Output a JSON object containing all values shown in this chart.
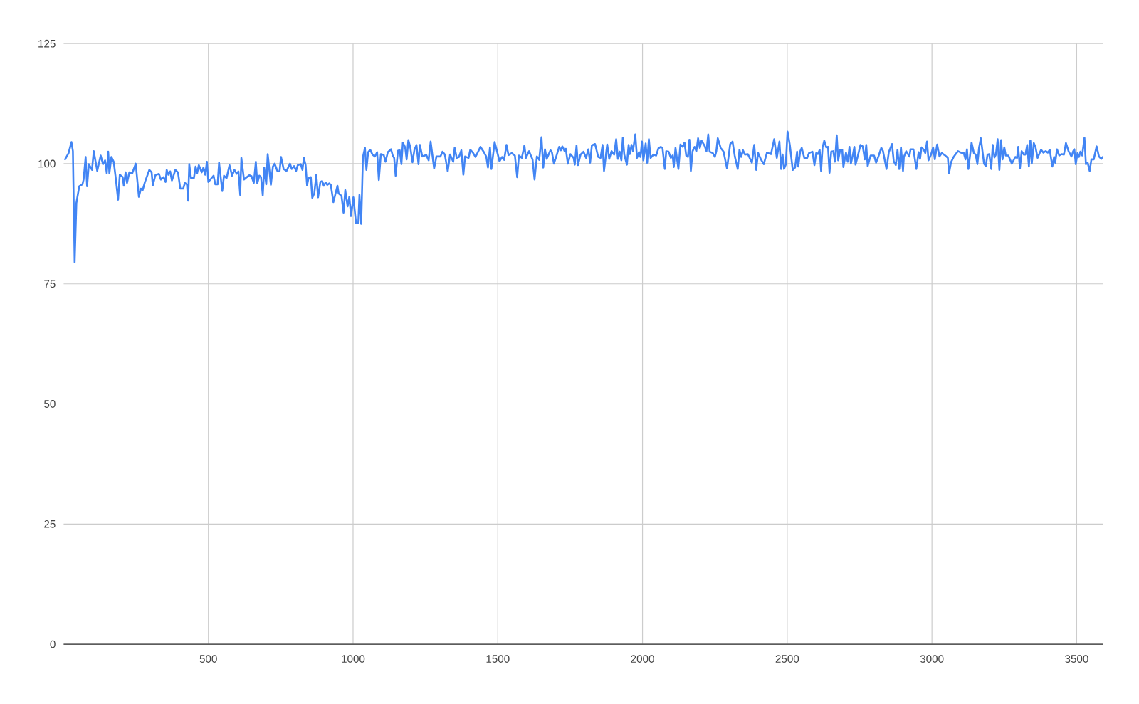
{
  "chart_data": {
    "type": "line",
    "x": [
      5,
      17,
      27,
      32,
      38,
      44,
      54,
      65,
      69,
      76,
      81,
      87,
      98,
      104,
      116,
      128,
      136,
      143,
      149,
      154,
      158,
      165,
      173,
      180,
      188,
      194,
      204,
      208,
      214,
      219,
      227,
      237,
      249,
      260,
      267,
      273,
      281,
      296,
      304,
      308,
      317,
      329,
      336,
      345,
      352,
      356,
      362,
      368,
      374,
      386,
      395,
      403,
      413,
      419,
      426,
      430,
      434,
      440,
      450,
      456,
      461,
      467,
      477,
      483,
      489,
      495,
      500,
      511,
      518,
      524,
      532,
      537,
      548,
      554,
      563,
      573,
      582,
      590,
      598,
      604,
      610,
      614,
      623,
      633,
      642,
      649,
      657,
      664,
      669,
      676,
      682,
      688,
      693,
      700,
      705,
      716,
      723,
      729,
      739,
      746,
      751,
      760,
      770,
      782,
      788,
      796,
      803,
      809,
      819,
      825,
      830,
      836,
      841,
      846,
      854,
      859,
      866,
      873,
      879,
      887,
      893,
      899,
      905,
      911,
      918,
      923,
      932,
      946,
      950,
      960,
      967,
      973,
      981,
      987,
      993,
      1001,
      1010,
      1018,
      1022,
      1028,
      1034,
      1041,
      1046,
      1052,
      1059,
      1067,
      1075,
      1083,
      1089,
      1096,
      1106,
      1112,
      1120,
      1131,
      1137,
      1142,
      1147,
      1155,
      1161,
      1167,
      1172,
      1180,
      1185,
      1191,
      1198,
      1205,
      1212,
      1219,
      1226,
      1231,
      1239,
      1253,
      1261,
      1268,
      1280,
      1288,
      1302,
      1309,
      1317,
      1327,
      1335,
      1346,
      1351,
      1358,
      1366,
      1374,
      1381,
      1387,
      1399,
      1405,
      1414,
      1423,
      1440,
      1452,
      1460,
      1466,
      1473,
      1478,
      1489,
      1496,
      1506,
      1515,
      1522,
      1530,
      1537,
      1548,
      1559,
      1567,
      1573,
      1583,
      1592,
      1597,
      1608,
      1620,
      1627,
      1635,
      1643,
      1651,
      1657,
      1663,
      1669,
      1682,
      1687,
      1694,
      1702,
      1712,
      1718,
      1723,
      1731,
      1735,
      1742,
      1751,
      1762,
      1766,
      1772,
      1777,
      1786,
      1796,
      1805,
      1813,
      1819,
      1825,
      1836,
      1847,
      1855,
      1862,
      1867,
      1878,
      1885,
      1893,
      1902,
      1909,
      1915,
      1921,
      1927,
      1932,
      1937,
      1946,
      1952,
      1956,
      1962,
      1967,
      1975,
      1981,
      1988,
      1993,
      1998,
      2003,
      2011,
      2016,
      2022,
      2028,
      2038,
      2047,
      2055,
      2063,
      2069,
      2077,
      2082,
      2090,
      2098,
      2104,
      2108,
      2114,
      2124,
      2131,
      2139,
      2145,
      2151,
      2157,
      2162,
      2167,
      2173,
      2180,
      2186,
      2192,
      2198,
      2204,
      2214,
      2221,
      2227,
      2232,
      2243,
      2250,
      2255,
      2260,
      2270,
      2280,
      2292,
      2303,
      2311,
      2319,
      2329,
      2335,
      2341,
      2347,
      2354,
      2364,
      2378,
      2386,
      2393,
      2399,
      2409,
      2419,
      2430,
      2444,
      2455,
      2464,
      2473,
      2479,
      2484,
      2489,
      2495,
      2501,
      2509,
      2519,
      2527,
      2534,
      2538,
      2545,
      2550,
      2559,
      2569,
      2575,
      2587,
      2594,
      2600,
      2606,
      2612,
      2617,
      2622,
      2628,
      2635,
      2641,
      2646,
      2652,
      2659,
      2665,
      2671,
      2676,
      2683,
      2690,
      2694,
      2703,
      2709,
      2715,
      2720,
      2727,
      2732,
      2736,
      2743,
      2753,
      2761,
      2768,
      2773,
      2778,
      2788,
      2800,
      2807,
      2815,
      2825,
      2831,
      2843,
      2851,
      2862,
      2868,
      2875,
      2881,
      2887,
      2893,
      2900,
      2903,
      2911,
      2922,
      2926,
      2936,
      2946,
      2954,
      2959,
      2964,
      2972,
      2977,
      2983,
      2988,
      2997,
      3004,
      3010,
      3018,
      3026,
      3034,
      3046,
      3055,
      3059,
      3066,
      3075,
      3082,
      3090,
      3100,
      3110,
      3116,
      3121,
      3126,
      3137,
      3145,
      3151,
      3157,
      3163,
      3169,
      3174,
      3180,
      3186,
      3192,
      3198,
      3205,
      3210,
      3216,
      3221,
      3227,
      3233,
      3239,
      3244,
      3250,
      3255,
      3264,
      3276,
      3288,
      3294,
      3298,
      3304,
      3310,
      3317,
      3323,
      3329,
      3335,
      3340,
      3345,
      3352,
      3358,
      3365,
      3377,
      3385,
      3393,
      3400,
      3407,
      3416,
      3422,
      3426,
      3432,
      3440,
      3448,
      3456,
      3463,
      3472,
      3482,
      3488,
      3492,
      3497,
      3503,
      3508,
      3513,
      3519,
      3527,
      3532,
      3538,
      3545,
      3551,
      3559,
      3569,
      3577,
      3585,
      3590
    ],
    "series": [
      {
        "color": "#4285f4",
        "values": [
          100.9,
          102.2,
          104.5,
          102.6,
          79.5,
          91.8,
          95.3,
          95.7,
          96.7,
          101.4,
          95.3,
          99.9,
          98.7,
          102.6,
          98.5,
          101.7,
          99.9,
          100.7,
          98,
          102.5,
          98,
          101.4,
          100.4,
          97,
          92.5,
          97.7,
          97.2,
          95.4,
          98.2,
          96,
          98.2,
          98,
          100,
          93.1,
          94.8,
          94.5,
          96.2,
          98.7,
          98.2,
          95.5,
          97.6,
          97.9,
          96.7,
          97.2,
          96.2,
          98.7,
          97.7,
          98.4,
          96.5,
          98.7,
          98.2,
          94.8,
          94.8,
          96,
          95.7,
          92.3,
          99.9,
          97,
          97,
          99.4,
          98,
          99.7,
          98.2,
          99.2,
          97.7,
          100.4,
          96.2,
          97,
          97.5,
          95.7,
          95.7,
          100.2,
          94.3,
          97.5,
          97,
          99.7,
          97.5,
          98.7,
          97.9,
          98.4,
          93.5,
          101.2,
          96.7,
          97.2,
          97.6,
          97.4,
          96,
          100.4,
          95.9,
          97.5,
          97.2,
          93.4,
          99.2,
          95.7,
          102,
          95.6,
          99.4,
          100,
          98.4,
          98.4,
          101.4,
          98.9,
          98.5,
          100,
          98.9,
          99.5,
          98.5,
          99.7,
          99.9,
          98.7,
          101.2,
          99.7,
          95.5,
          97,
          97.2,
          92.9,
          93.8,
          97.7,
          93,
          96.2,
          96.4,
          95.4,
          96.1,
          95.6,
          95.9,
          95.6,
          92,
          95.4,
          93.8,
          93.3,
          89.8,
          94.5,
          91.1,
          93.1,
          89.1,
          93,
          87.7,
          87.7,
          93.5,
          87.5,
          101.4,
          103.3,
          98.7,
          102.4,
          102.9,
          101.9,
          101.5,
          102.4,
          96.6,
          102,
          101.8,
          100.4,
          102.4,
          103,
          101.7,
          101.2,
          97.5,
          102.7,
          102.8,
          99.9,
          104.4,
          103.4,
          100.9,
          104.9,
          103.3,
          100.3,
          102.9,
          103.9,
          99.9,
          103.9,
          101.5,
          101.8,
          100.7,
          104.6,
          99,
          101.5,
          101.5,
          102.5,
          101.9,
          98.4,
          101.9,
          100.4,
          103.3,
          101.2,
          101.4,
          102.8,
          97.7,
          101.5,
          101.2,
          102.9,
          102.3,
          101.4,
          103.5,
          102.4,
          101.5,
          99.2,
          103.4,
          98.9,
          104.5,
          102.9,
          100.5,
          101.4,
          100.8,
          103.9,
          101.8,
          102.2,
          101.7,
          97.2,
          101.7,
          101.2,
          103.8,
          101.2,
          102.6,
          100.9,
          96.7,
          101.5,
          100.8,
          105.5,
          99.2,
          103,
          101,
          102.8,
          102.4,
          100,
          101.5,
          103.5,
          102.8,
          103.6,
          102.6,
          103.1,
          100,
          102,
          101.2,
          99.8,
          103.8,
          99.7,
          101.9,
          102.5,
          101.2,
          103,
          100.2,
          103.8,
          104.1,
          101.4,
          101.2,
          103.9,
          98.5,
          104,
          101,
          102.6,
          101.9,
          105.1,
          101,
          102.5,
          100.7,
          105.4,
          101.9,
          99.8,
          103.9,
          102,
          103.9,
          102.6,
          106.1,
          101.2,
          102.4,
          101.4,
          104.6,
          100.7,
          104.2,
          100.2,
          105.1,
          101.2,
          101.9,
          101.7,
          103.2,
          103.5,
          103.3,
          98.9,
          102.6,
          102.5,
          101.2,
          101.7,
          99.3,
          103.3,
          98.9,
          104,
          103.5,
          104.4,
          101.7,
          101.4,
          105,
          98.5,
          102.6,
          103.5,
          102.6,
          105.3,
          103.3,
          104.8,
          103.8,
          102.6,
          106.1,
          102.5,
          102.2,
          101.4,
          102.6,
          105.3,
          103.3,
          102.5,
          99,
          104.1,
          104.6,
          101.5,
          98.9,
          102.9,
          101.4,
          102.8,
          101.9,
          102,
          100.2,
          103.9,
          98.7,
          102.3,
          100.9,
          99.9,
          102.3,
          102,
          105.1,
          101.2,
          104.6,
          98.9,
          101.9,
          98.9,
          99.8,
          106.7,
          103.9,
          98.7,
          99.2,
          102.5,
          99.4,
          102.6,
          103.3,
          101.2,
          101.2,
          102.2,
          102.5,
          99.7,
          102.2,
          102,
          102.9,
          98.5,
          103.4,
          104.8,
          103.4,
          103.5,
          98.1,
          102.5,
          102.6,
          100.4,
          105.9,
          100.7,
          102.9,
          102.9,
          99.3,
          102.3,
          100.4,
          103.5,
          100,
          101.9,
          103.5,
          99.8,
          101.4,
          103.9,
          103.6,
          100.9,
          103.9,
          99.5,
          101.7,
          101.7,
          100.2,
          101.5,
          103.3,
          102.6,
          98.9,
          102.4,
          104.1,
          100.5,
          99.7,
          102.9,
          98.9,
          103.4,
          98.5,
          101.4,
          102.6,
          101.5,
          103,
          103,
          98.9,
          102.4,
          101,
          103.4,
          102.9,
          102.2,
          104.6,
          100.7,
          101.9,
          103.4,
          100.9,
          104,
          101.5,
          102.2,
          101.7,
          101.2,
          98,
          100.3,
          101.4,
          102,
          102.6,
          102.3,
          102.2,
          100.9,
          103,
          98.9,
          104.4,
          102.2,
          101.9,
          99.9,
          103.4,
          105.3,
          102.9,
          100,
          99.5,
          101.9,
          102,
          98.9,
          103.9,
          101.3,
          101.9,
          105.1,
          98.7,
          104.9,
          100.9,
          103.4,
          101.7,
          101.7,
          100,
          101.4,
          101.2,
          103.5,
          99,
          102.6,
          101.9,
          101.9,
          103.9,
          99.4,
          104.8,
          100,
          104.3,
          103.4,
          101.2,
          102.9,
          102.3,
          102.6,
          102.3,
          102.9,
          99.4,
          101.4,
          100.2,
          103,
          101.7,
          102,
          101.9,
          104.3,
          102.6,
          101.5,
          102.6,
          103,
          99.9,
          102.2,
          101.4,
          102.5,
          101.7,
          105.4,
          99.9,
          100.2,
          98.5,
          100.9,
          100.9,
          103.6,
          101.5,
          101,
          101.4
        ]
      }
    ],
    "xlim": [
      0,
      3590
    ],
    "ylim": [
      0,
      125
    ],
    "xticks": [
      500,
      1000,
      1500,
      2000,
      2500,
      3000,
      3500
    ],
    "yticks": [
      0,
      25,
      50,
      75,
      100,
      125
    ],
    "grid": true,
    "line_style": "solid"
  }
}
